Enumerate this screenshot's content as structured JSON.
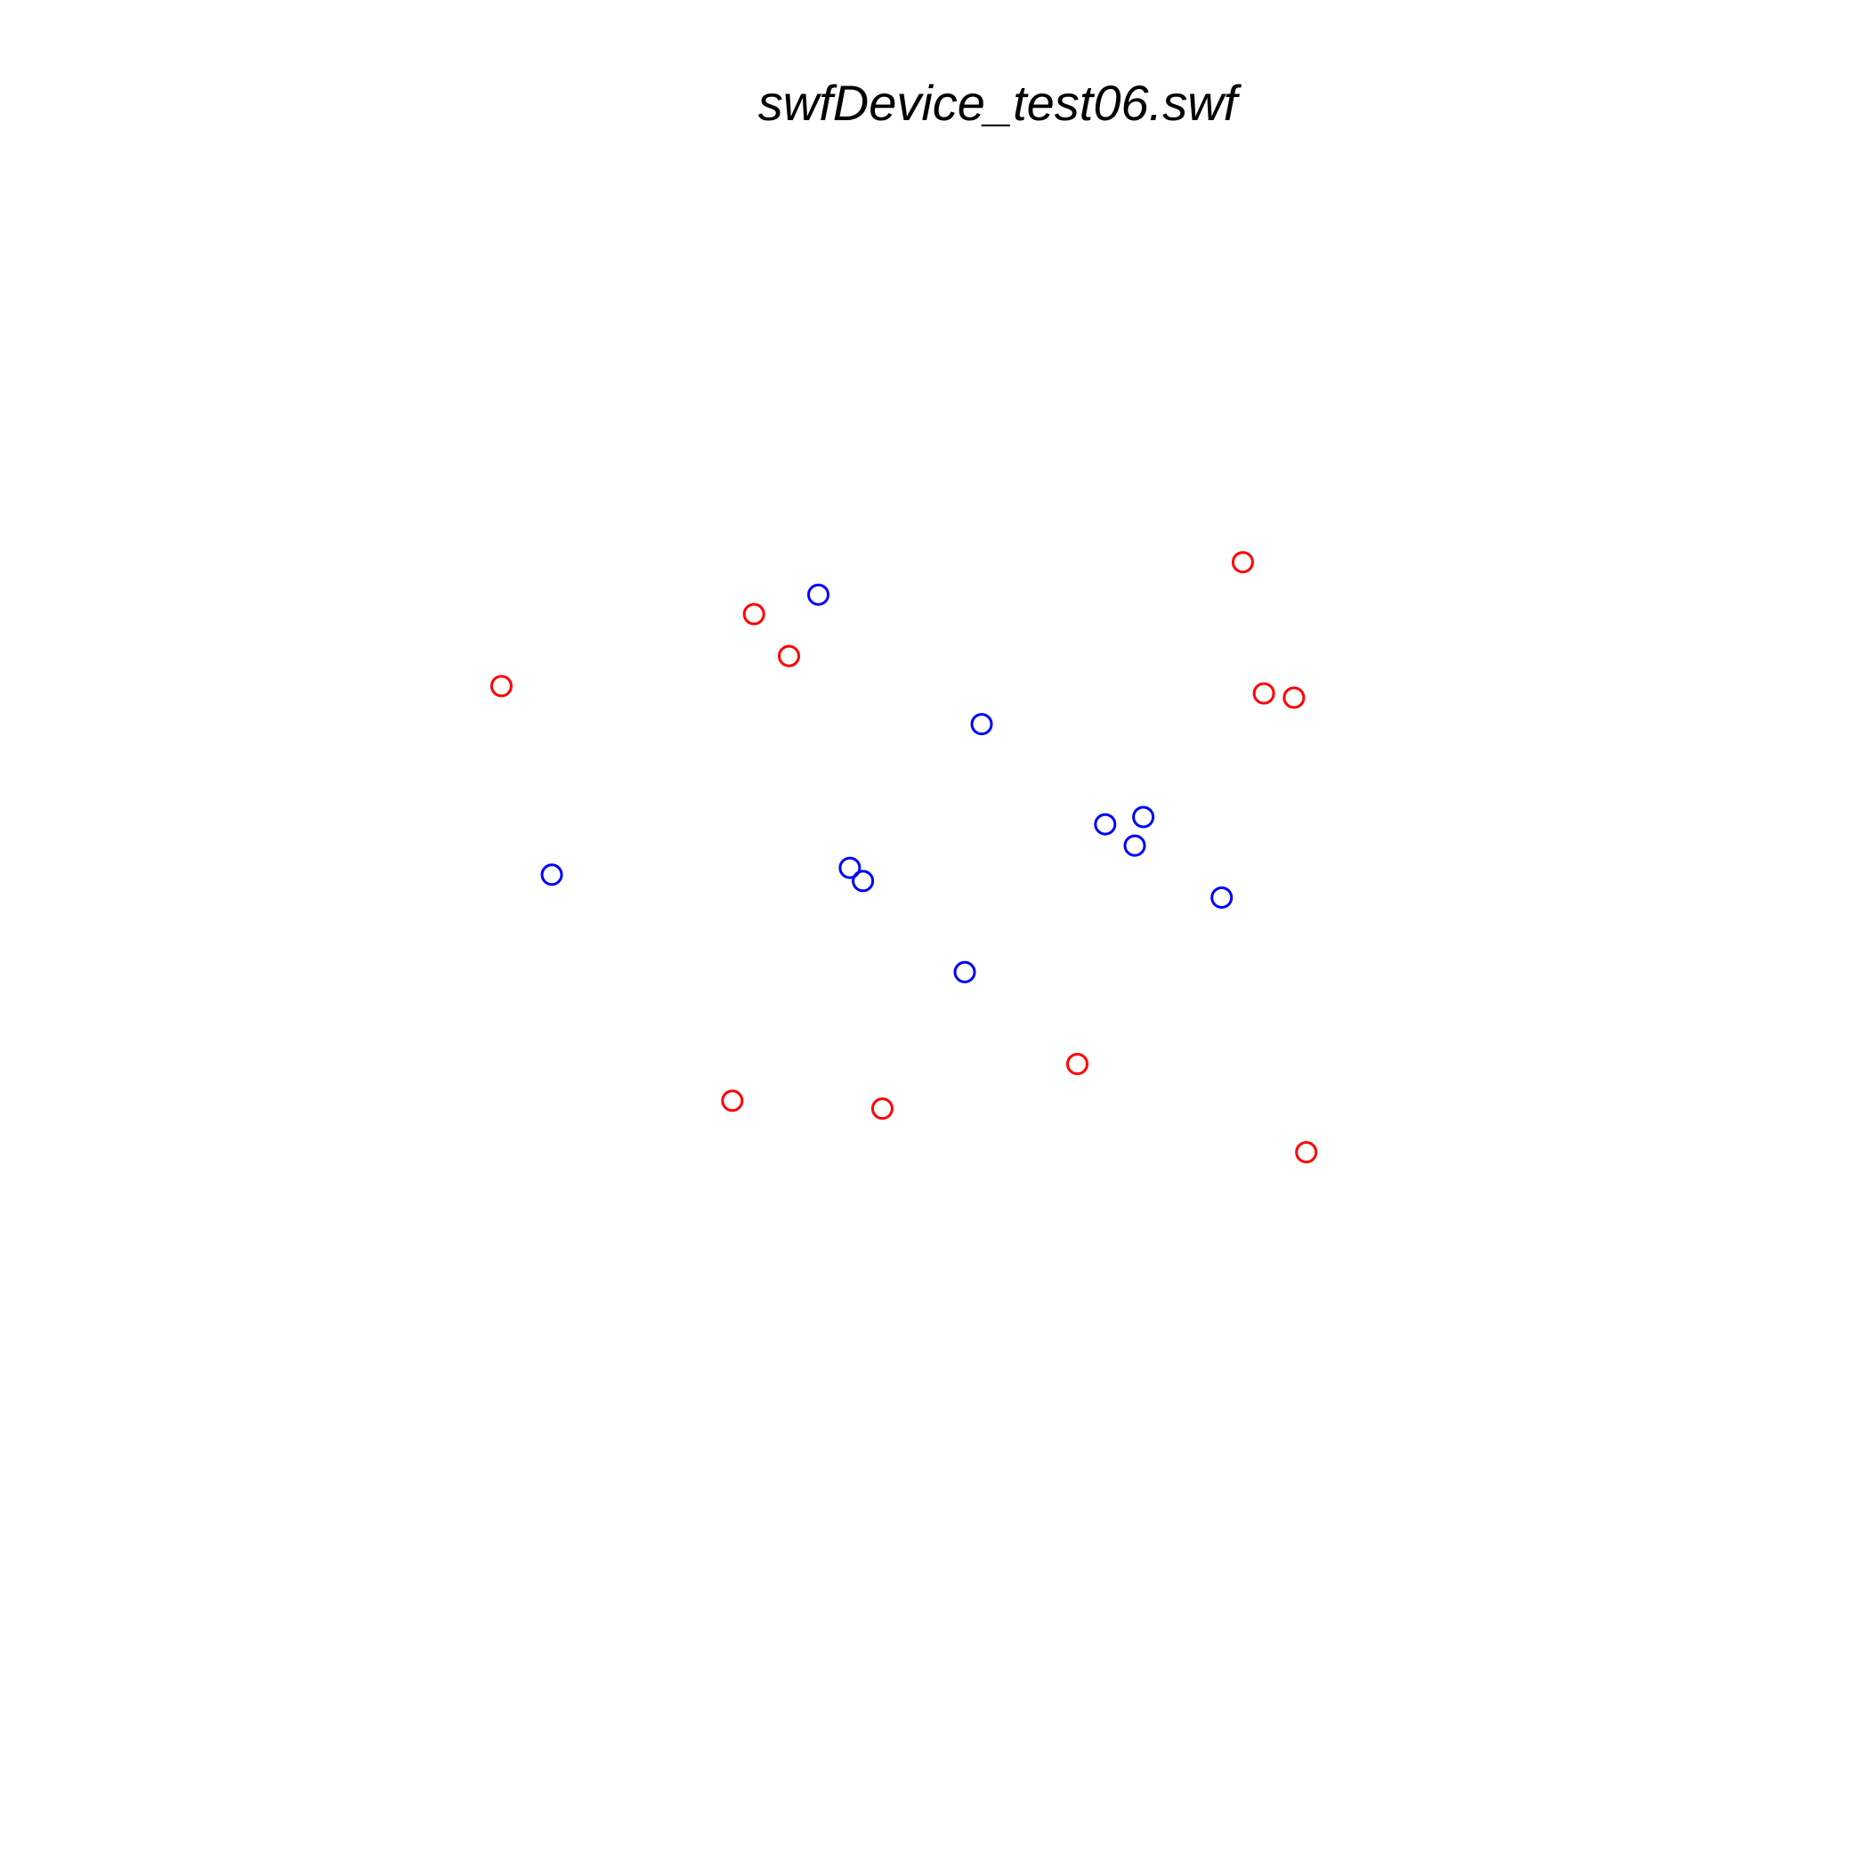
{
  "chart_data": {
    "type": "scatter",
    "title": "swfDevice_test06.swf",
    "xlabel": "",
    "ylabel": "",
    "axes_visible": false,
    "grid": false,
    "marker": "open-circle",
    "series": [
      {
        "color": "#ff0000",
        "points": [
          {
            "x": 0.8829,
            "y": 0.8894
          },
          {
            "x": 0.3264,
            "y": 0.8279
          },
          {
            "x": 0.3663,
            "y": 0.7781
          },
          {
            "x": 0.0389,
            "y": 0.7425
          },
          {
            "x": 0.9069,
            "y": 0.7338
          },
          {
            "x": 0.9411,
            "y": 0.7287
          },
          {
            "x": 0.6945,
            "y": 0.2941
          },
          {
            "x": 0.3017,
            "y": 0.2505
          },
          {
            "x": 0.4725,
            "y": 0.2412
          },
          {
            "x": 0.9551,
            "y": 0.1894
          }
        ]
      },
      {
        "color": "#0000ff",
        "points": [
          {
            "x": 0.3997,
            "y": 0.8509
          },
          {
            "x": 0.5856,
            "y": 0.6974
          },
          {
            "x": 0.7696,
            "y": 0.5871
          },
          {
            "x": 0.7262,
            "y": 0.5785
          },
          {
            "x": 0.7599,
            "y": 0.5532
          },
          {
            "x": 0.4356,
            "y": 0.5268
          },
          {
            "x": 0.4505,
            "y": 0.5112
          },
          {
            "x": 0.0963,
            "y": 0.5187
          },
          {
            "x": 0.8589,
            "y": 0.4916
          },
          {
            "x": 0.5664,
            "y": 0.4031
          }
        ]
      }
    ]
  }
}
